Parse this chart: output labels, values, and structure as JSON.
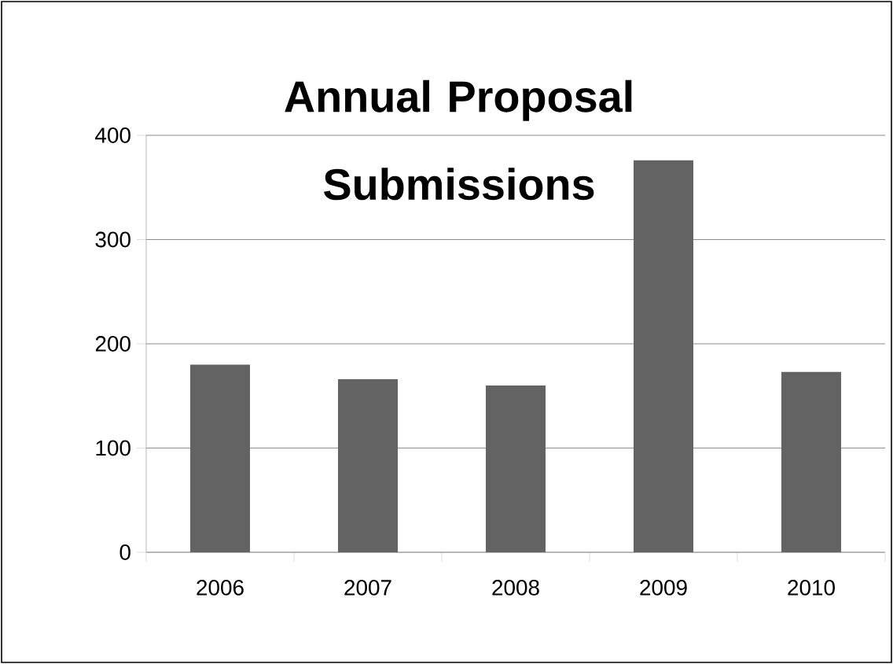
{
  "chart_data": {
    "type": "bar",
    "title": "Annual Proposal Submissions",
    "categories": [
      "2006",
      "2007",
      "2008",
      "2009",
      "2010"
    ],
    "values": [
      180,
      166,
      160,
      376,
      173
    ],
    "color": "#636363",
    "ylim": [
      0,
      400
    ],
    "yticks": [
      0,
      100,
      200,
      300,
      400
    ],
    "grid": "y"
  }
}
